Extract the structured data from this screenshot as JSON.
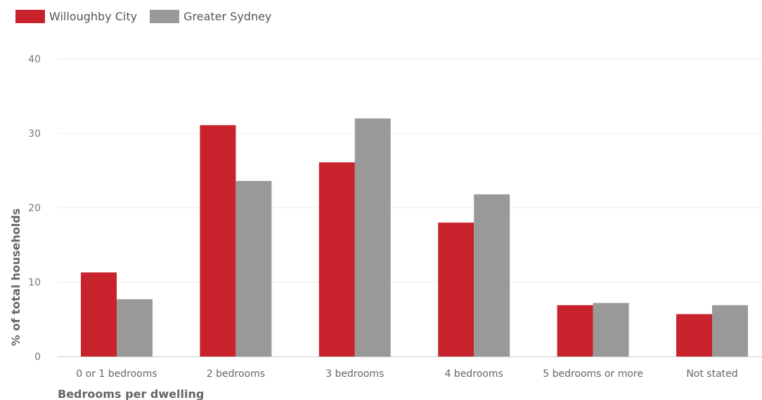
{
  "chart_data": {
    "type": "bar",
    "title": "",
    "xlabel": "Bedrooms per dwelling",
    "ylabel": "% of total households",
    "ylim": [
      0,
      40
    ],
    "yticks": [
      0,
      10,
      20,
      30,
      40
    ],
    "grid": true,
    "legend_position": "top-left",
    "categories": [
      "0 or 1 bedrooms",
      "2 bedrooms",
      "3 bedrooms",
      "4 bedrooms",
      "5 bedrooms or more",
      "Not stated"
    ],
    "series": [
      {
        "name": "Willoughby City",
        "color": "#c8232c",
        "values": [
          11.3,
          31.1,
          26.1,
          18.0,
          6.9,
          5.7
        ]
      },
      {
        "name": "Greater Sydney",
        "color": "#999999",
        "values": [
          7.7,
          23.6,
          32.0,
          21.8,
          7.2,
          6.9
        ]
      }
    ]
  }
}
